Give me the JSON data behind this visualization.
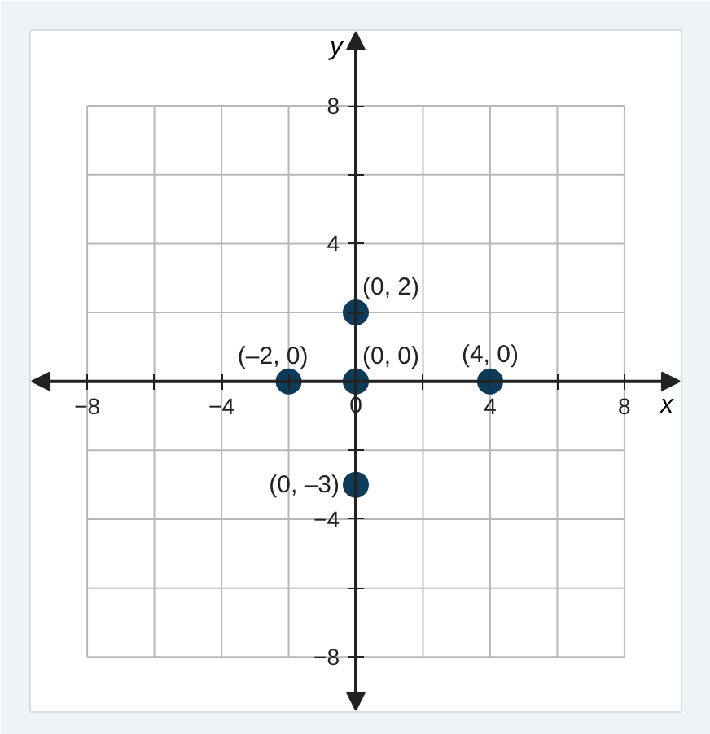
{
  "chart_data": {
    "type": "scatter",
    "xlabel": "x",
    "ylabel": "y",
    "x": [
      -2,
      0,
      4,
      0,
      0
    ],
    "values": [
      0,
      0,
      0,
      2,
      -3
    ],
    "color": "#0f3b5a",
    "marker": "circle",
    "value_labels": [
      "(–2, 0)",
      "(0, 0)",
      "(4, 0)",
      "(0, 2)",
      "(0, –3)"
    ],
    "xlim": [
      -9.7,
      9.7
    ],
    "ylim": [
      -9.6,
      10.2
    ],
    "xticks": [
      -8,
      {
        "value": -6,
        "label": null
      },
      -4,
      {
        "value": -2,
        "label": null
      },
      0,
      {
        "value": 2,
        "label": null
      },
      4,
      {
        "value": 6,
        "label": null
      },
      8
    ],
    "yticks": [
      -8,
      {
        "value": -6,
        "label": null
      },
      -4,
      {
        "value": -2,
        "label": null
      },
      {
        "value": 0,
        "label": null
      },
      {
        "value": 2,
        "label": null
      },
      4,
      {
        "value": 6,
        "label": null
      },
      8
    ],
    "grid": true
  }
}
